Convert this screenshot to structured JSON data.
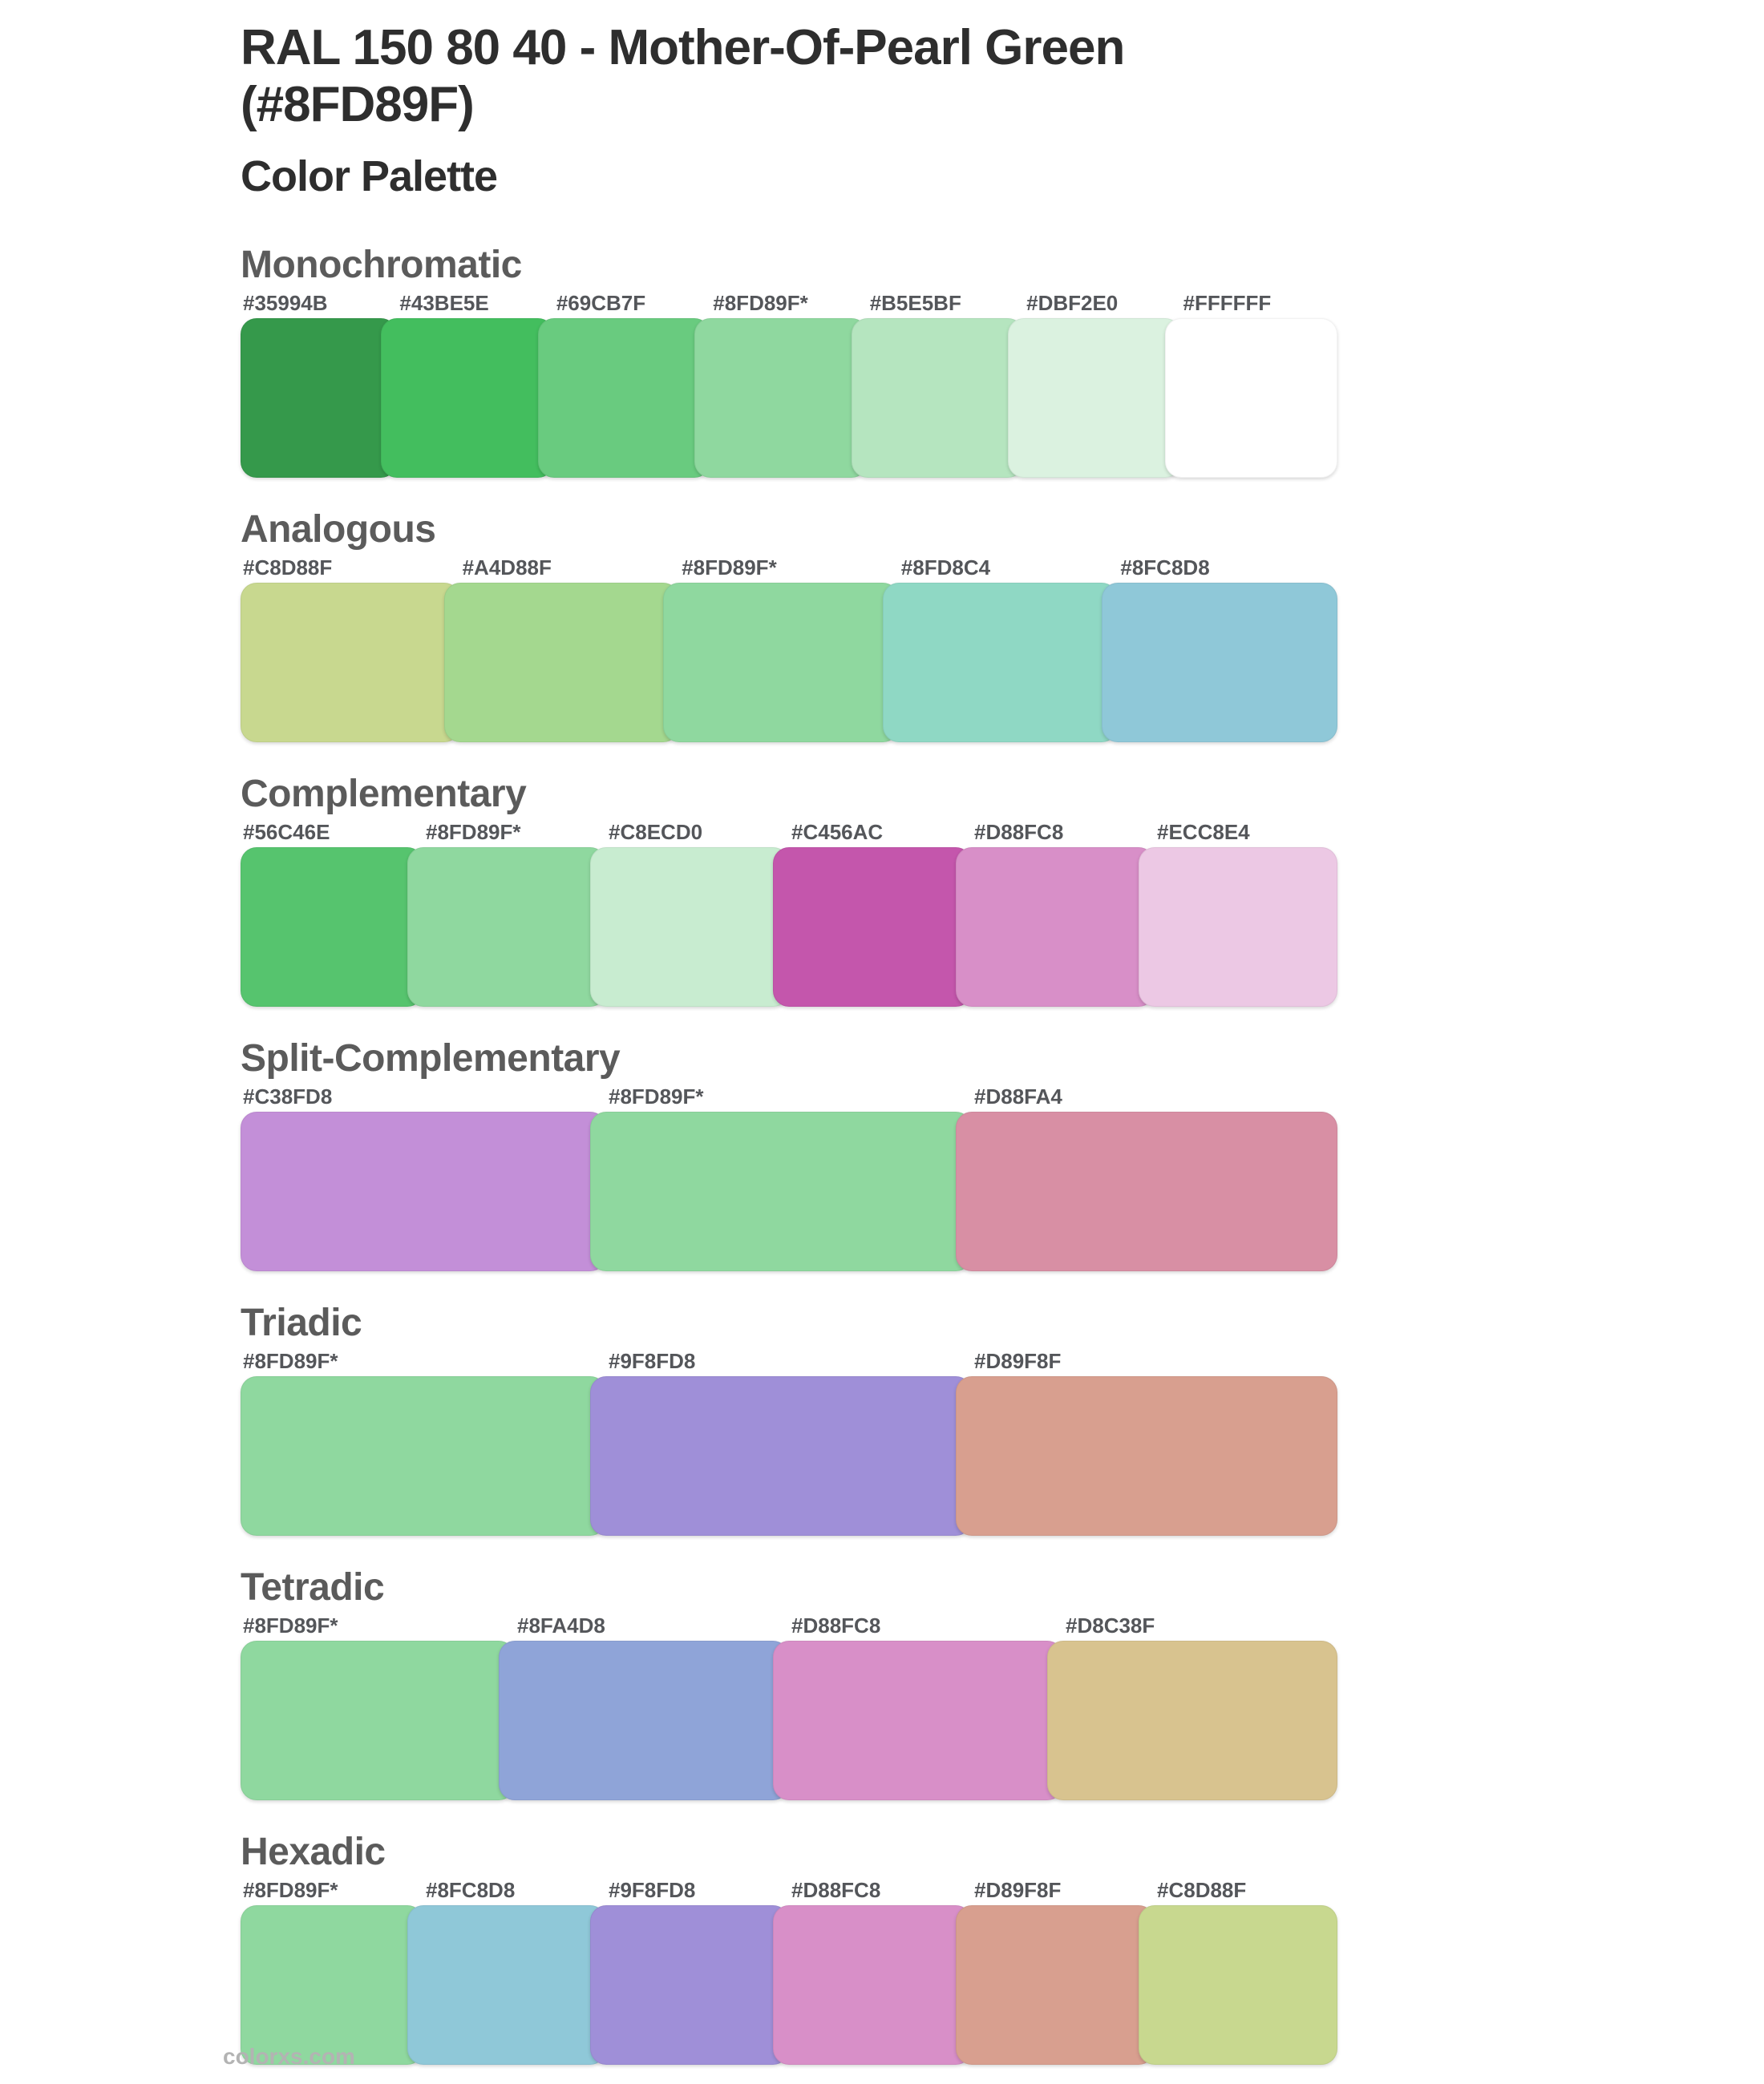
{
  "page": {
    "title": "RAL 150 80 40 - Mother-Of-Pearl Green (#8FD89F)",
    "subtitle": "Color Palette",
    "footer_link": "colorxs.com"
  },
  "base_color": "#8FD89F",
  "theme": {
    "background": "#FFFFFF",
    "title_color": "#2E2E2E",
    "heading_color": "#5B5B5B",
    "label_color": "#54565A",
    "footer_color": "#B3B3B3"
  },
  "sections": [
    {
      "name": "Monochromatic",
      "swatches": [
        {
          "label": "#35994B",
          "color": "#35994B"
        },
        {
          "label": "#43BE5E",
          "color": "#43BE5E"
        },
        {
          "label": "#69CB7F",
          "color": "#69CB7F"
        },
        {
          "label": "#8FD89F*",
          "color": "#8FD89F"
        },
        {
          "label": "#B5E5BF",
          "color": "#B5E5BF"
        },
        {
          "label": "#DBF2E0",
          "color": "#DBF2E0"
        },
        {
          "label": "#FFFFFF",
          "color": "#FFFFFF"
        }
      ]
    },
    {
      "name": "Analogous",
      "swatches": [
        {
          "label": "#C8D88F",
          "color": "#C8D88F"
        },
        {
          "label": "#A4D88F",
          "color": "#A4D88F"
        },
        {
          "label": "#8FD89F*",
          "color": "#8FD89F"
        },
        {
          "label": "#8FD8C4",
          "color": "#8FD8C4"
        },
        {
          "label": "#8FC8D8",
          "color": "#8FC8D8"
        }
      ]
    },
    {
      "name": "Complementary",
      "swatches": [
        {
          "label": "#56C46E",
          "color": "#56C46E"
        },
        {
          "label": "#8FD89F*",
          "color": "#8FD89F"
        },
        {
          "label": "#C8ECD0",
          "color": "#C8ECD0"
        },
        {
          "label": "#C456AC",
          "color": "#C456AC"
        },
        {
          "label": "#D88FC8",
          "color": "#D88FC8"
        },
        {
          "label": "#ECC8E4",
          "color": "#ECC8E4"
        }
      ]
    },
    {
      "name": "Split-Complementary",
      "swatches": [
        {
          "label": "#C38FD8",
          "color": "#C38FD8"
        },
        {
          "label": "#8FD89F*",
          "color": "#8FD89F"
        },
        {
          "label": "#D88FA4",
          "color": "#D88FA4"
        }
      ]
    },
    {
      "name": "Triadic",
      "swatches": [
        {
          "label": "#8FD89F*",
          "color": "#8FD89F"
        },
        {
          "label": "#9F8FD8",
          "color": "#9F8FD8"
        },
        {
          "label": "#D89F8F",
          "color": "#D89F8F"
        }
      ]
    },
    {
      "name": "Tetradic",
      "swatches": [
        {
          "label": "#8FD89F*",
          "color": "#8FD89F"
        },
        {
          "label": "#8FA4D8",
          "color": "#8FA4D8"
        },
        {
          "label": "#D88FC8",
          "color": "#D88FC8"
        },
        {
          "label": "#D8C38F",
          "color": "#D8C38F"
        }
      ]
    },
    {
      "name": "Hexadic",
      "swatches": [
        {
          "label": "#8FD89F*",
          "color": "#8FD89F"
        },
        {
          "label": "#8FC8D8",
          "color": "#8FC8D8"
        },
        {
          "label": "#9F8FD8",
          "color": "#9F8FD8"
        },
        {
          "label": "#D88FC8",
          "color": "#D88FC8"
        },
        {
          "label": "#D89F8F",
          "color": "#D89F8F"
        },
        {
          "label": "#C8D88F",
          "color": "#C8D88F"
        }
      ]
    }
  ]
}
